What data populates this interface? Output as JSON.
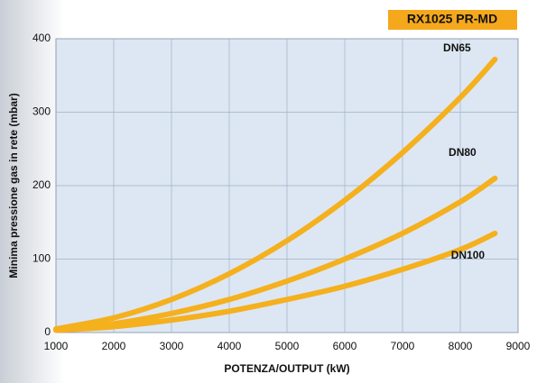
{
  "chart_data": {
    "type": "line",
    "badge": "RX1025 PR-MD",
    "x_label": "POTENZA/OUTPUT (kW)",
    "y_label": "Minima pressione gas in rete (mbar)",
    "x": [
      1000,
      2000,
      3000,
      4000,
      5000,
      6000,
      7000,
      8000,
      8600
    ],
    "series": [
      {
        "name": "DN65",
        "color": "#f5b01e",
        "values": [
          5,
          20,
          45,
          80,
          125,
          180,
          245,
          320,
          372
        ]
      },
      {
        "name": "DN80",
        "color": "#f5b01e",
        "values": [
          4,
          12,
          26,
          45,
          70,
          100,
          135,
          178,
          210
        ]
      },
      {
        "name": "DN100",
        "color": "#f5b01e",
        "values": [
          3,
          8,
          17,
          29,
          45,
          63,
          86,
          113,
          135
        ]
      }
    ],
    "xlim": [
      1000,
      9000
    ],
    "xticks": [
      1000,
      2000,
      3000,
      4000,
      5000,
      6000,
      7000,
      8000,
      9000
    ],
    "ylim": [
      0,
      400
    ],
    "yticks": [
      0,
      100,
      200,
      300,
      400
    ],
    "grid": true
  }
}
